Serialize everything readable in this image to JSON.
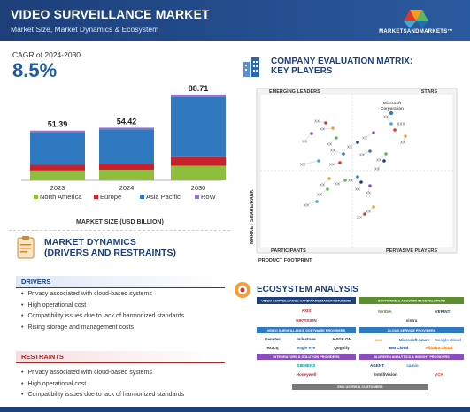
{
  "header": {
    "title": "VIDEO SURVEILLANCE MARKET",
    "subtitle": "Market Size, Market Dynamics & Ecosystem",
    "logo_text": "MARKETSANDMARKETS™",
    "color": "#1d3f7a"
  },
  "cagr": {
    "label": "CAGR of 2024-2030",
    "value": "8.5%"
  },
  "chart_data": {
    "type": "bar",
    "stacked": true,
    "categories": [
      "2023",
      "2024",
      "2030"
    ],
    "totals": [
      51.39,
      54.42,
      88.71
    ],
    "total_labels": [
      "51.39",
      "54.42",
      "88.71"
    ],
    "series": [
      {
        "name": "North America",
        "color": "#8fbe3f",
        "values": [
          10.2,
          10.8,
          15.0
        ]
      },
      {
        "name": "Europe",
        "color": "#c7222c",
        "values": [
          5.8,
          6.1,
          9.0
        ]
      },
      {
        "name": "Asia Pacific",
        "color": "#2f79c0",
        "values": [
          33.9,
          35.9,
          61.9
        ]
      },
      {
        "name": "RoW",
        "color": "#9a70c8",
        "values": [
          1.49,
          1.62,
          2.81
        ]
      }
    ],
    "xlabel": "MARKET SIZE (USD BILLION)",
    "legend_position": "bottom"
  },
  "market_dynamics": {
    "title_line1": "MARKET DYNAMICS",
    "title_line2": "(DRIVERS AND RESTRAINTS)",
    "drivers_heading": "DRIVERS",
    "drivers": [
      "Privacy associated with cloud-based systems",
      "High operational cost",
      "Compatibility issues due to lack of harmonized standards",
      "Rising storage and management costs"
    ],
    "restraints_heading": "RESTRAINTS",
    "restraints": [
      "Privacy associated with cloud-based systems",
      "High operational cost",
      "Compatibility issues due to lack of harmonized standards"
    ]
  },
  "matrix": {
    "title_line1": "COMPANY EVALUATION MATRIX:",
    "title_line2": "KEY PLAYERS",
    "quadrants": {
      "top_left": "EMERGING LEADERS",
      "top_right": "STARS",
      "bottom_left": "PARTICIPANTS",
      "bottom_right": "PERVASIVE PLAYERS"
    },
    "y_axis": "MARKET SHARE/RANK",
    "x_axis": "PRODUCT FOOTPRINT",
    "highlight_label_line1": "Microsoft",
    "highlight_label_line2": "Corporation",
    "placeholder": "XX",
    "placeholder_wide": "XXX"
  },
  "ecosystem": {
    "title": "ECOSYSTEM ANALYSIS",
    "categories": [
      "VIDEO SURVEILLANCE HARDWARE MANUFACTURERS",
      "SOFTWARE & ALGORITHM DEVELOPERS",
      "VIDEO SURVEILLANCE SOFTWARE PROVIDERS",
      "CLOUD SERVICE PROVIDERS",
      "INTEGRATORS & SOLUTION PROVIDERS",
      "AI-DRIVEN ANALYTICS & INSIGHT PROVIDERS",
      "END USERS & CUSTOMERS"
    ],
    "brands": [
      "AXIS",
      "HIKVISION",
      "NVIDIA",
      "VERINT",
      "vintra",
      "Genetec",
      "milestone",
      "AVIGILON",
      "aws",
      "Microsoft Azure",
      "Google Cloud",
      "exacq",
      "eagle eye",
      "Qognify",
      "IBM Cloud",
      "Alibaba Cloud",
      "SIEMENS",
      "Honeywell",
      "AGENT",
      "camio",
      "IntelliVision",
      "VCA"
    ]
  }
}
